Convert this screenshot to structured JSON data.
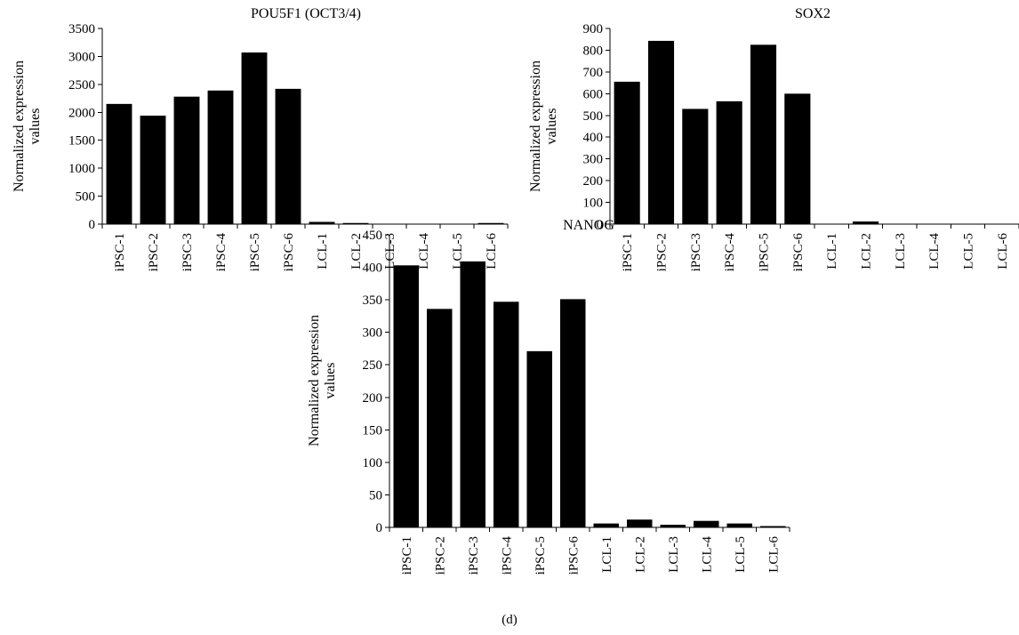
{
  "figure_label": "(d)",
  "chart_data": [
    {
      "type": "bar",
      "title": "POU5F1 (OCT3/4)",
      "ylabel_lines": [
        "Normalized expression",
        "values"
      ],
      "categories": [
        "iPSC-1",
        "iPSC-2",
        "iPSC-3",
        "iPSC-4",
        "iPSC-5",
        "iPSC-6",
        "LCL-1",
        "LCL-2",
        "LCL-3",
        "LCL-4",
        "LCL-5",
        "LCL-6"
      ],
      "values": [
        2150,
        1940,
        2280,
        2390,
        3070,
        2420,
        40,
        20,
        5,
        5,
        5,
        20
      ],
      "ylim": [
        0,
        3500
      ],
      "yticks": [
        0,
        500,
        1000,
        1500,
        2000,
        2500,
        3000,
        3500
      ],
      "color": "#000000"
    },
    {
      "type": "bar",
      "title": "SOX2",
      "ylabel_lines": [
        "Normalized expression",
        "values"
      ],
      "categories": [
        "iPSC-1",
        "iPSC-2",
        "iPSC-3",
        "iPSC-4",
        "iPSC-5",
        "iPSC-6",
        "LCL-1",
        "LCL-2",
        "LCL-3",
        "LCL-4",
        "LCL-5",
        "LCL-6"
      ],
      "values": [
        655,
        843,
        530,
        565,
        825,
        600,
        2,
        12,
        2,
        2,
        2,
        2
      ],
      "ylim": [
        0,
        900
      ],
      "yticks": [
        0,
        100,
        200,
        300,
        400,
        500,
        600,
        700,
        800,
        900
      ],
      "color": "#000000"
    },
    {
      "type": "bar",
      "title": "NANOG",
      "ylabel_lines": [
        "Normalized expression",
        "values"
      ],
      "categories": [
        "iPSC-1",
        "iPSC-2",
        "iPSC-3",
        "iPSC-4",
        "iPSC-5",
        "iPSC-6",
        "LCL-1",
        "LCL-2",
        "LCL-3",
        "LCL-4",
        "LCL-5",
        "LCL-6"
      ],
      "values": [
        403,
        336,
        409,
        347,
        271,
        351,
        6,
        12,
        4,
        10,
        6,
        2
      ],
      "ylim": [
        0,
        450
      ],
      "yticks": [
        0,
        50,
        100,
        150,
        200,
        250,
        300,
        350,
        400,
        450
      ],
      "color": "#000000"
    }
  ]
}
